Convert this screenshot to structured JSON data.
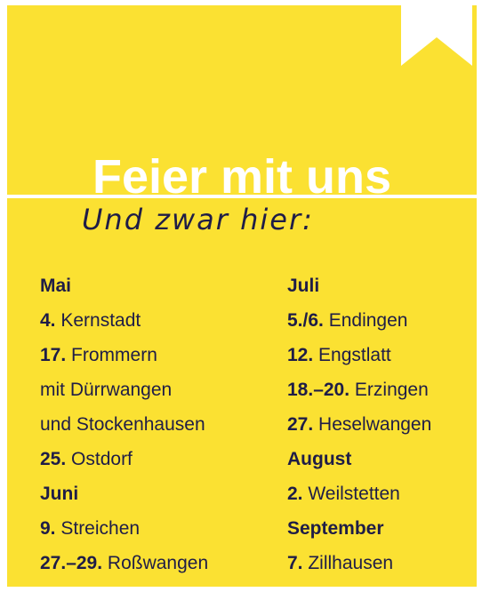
{
  "headline": "Feier mit uns",
  "subline": "Und zwar hier:",
  "left_column": {
    "m1": "Mai",
    "e1_num": "4.",
    "e1_text": " Kernstadt",
    "e2_num": "17.",
    "e2_text": " Frommern",
    "e2_line2": "mit Dürrwangen",
    "e2_line3": "und Stockenhausen",
    "e3_num": "25.",
    "e3_text": " Ostdorf",
    "m2": "Juni",
    "e4_num": "9.",
    "e4_text": " Streichen",
    "e5_num": "27.–29.",
    "e5_text": " Roßwangen"
  },
  "right_column": {
    "m1": "Juli",
    "e1_num": "5./6.",
    "e1_text": " Endingen",
    "e2_num": "12.",
    "e2_text": " Engstlatt",
    "e3_num": "18.–20.",
    "e3_text": " Erzingen",
    "e4_num": "27.",
    "e4_text": " Heselwangen",
    "m2": "August",
    "e5_num": "2.",
    "e5_text": " Weilstetten",
    "m3": "September",
    "e6_num": "7.",
    "e6_text": " Zillhausen"
  },
  "colors": {
    "background": "#fbe132",
    "text": "#1f1d47",
    "accent": "#ffffff"
  },
  "icons": {
    "ribbon": "bookmark-ribbon-icon"
  }
}
